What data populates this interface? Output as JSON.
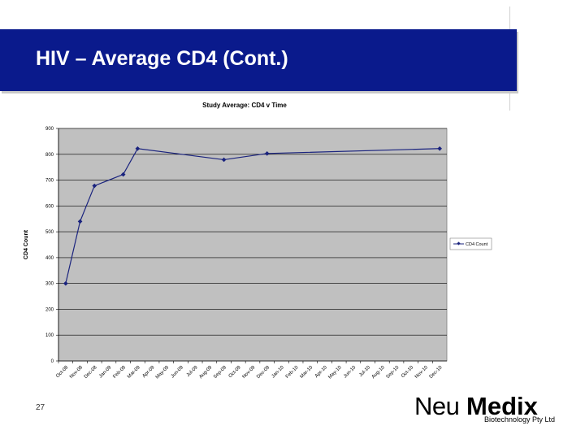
{
  "slide": {
    "title": "HIV – Average CD4 (Cont.)",
    "page_number": "27"
  },
  "logo": {
    "neu": "Neu",
    "medix": "Medix",
    "subtitle": "Biotechnology Pty Ltd"
  },
  "chart_data": {
    "type": "line",
    "title": "Study Average: CD4 v Time",
    "ylabel": "CD4 Count",
    "xlabel": "",
    "ylim": [
      0,
      900
    ],
    "yticks": [
      0,
      100,
      200,
      300,
      400,
      500,
      600,
      700,
      800,
      900
    ],
    "grid": true,
    "legend_position": "right",
    "categories": [
      "Oct-08",
      "Nov-08",
      "Dec-08",
      "Jan-09",
      "Feb-09",
      "Mar-09",
      "Apr-09",
      "May-09",
      "Jun-09",
      "Jul-09",
      "Aug-09",
      "Sep-09",
      "Oct-09",
      "Nov-09",
      "Dec-09",
      "Jan-10",
      "Feb-10",
      "Mar-10",
      "Apr-10",
      "May-10",
      "Jun-10",
      "Jul-10",
      "Aug-10",
      "Sep-10",
      "Oct-10",
      "Nov-10",
      "Dec-10"
    ],
    "series": [
      {
        "name": "CD4 Count",
        "points": [
          {
            "x": "Oct-08",
            "y": 300
          },
          {
            "x": "Nov-08",
            "y": 540
          },
          {
            "x": "Dec-08",
            "y": 678
          },
          {
            "x": "Feb-09",
            "y": 722
          },
          {
            "x": "Mar-09",
            "y": 822
          },
          {
            "x": "Sep-09",
            "y": 779
          },
          {
            "x": "Dec-09",
            "y": 803
          },
          {
            "x": "Dec-10",
            "y": 822
          }
        ]
      }
    ],
    "colors": {
      "plot_background": "#c0c0c0",
      "series_line": "#1a237e",
      "grid": "#000000"
    }
  }
}
